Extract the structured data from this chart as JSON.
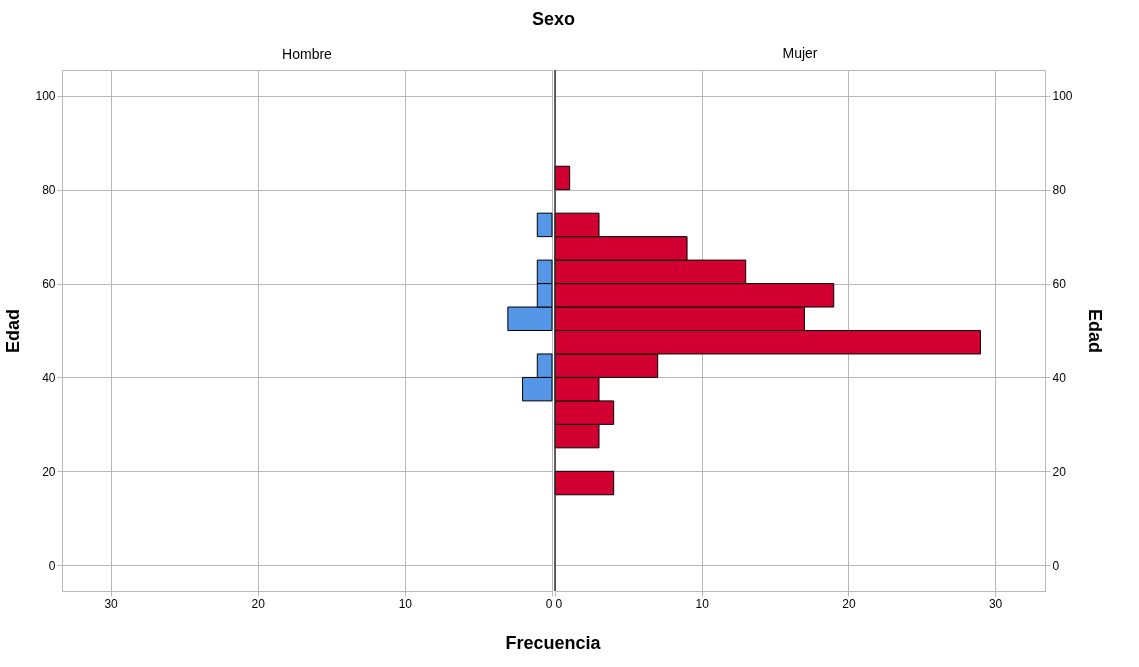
{
  "chart_data": [
    {
      "type": "histogram",
      "orientation": "horizontal",
      "title": "Hombre",
      "annotations": [
        "Sexo"
      ],
      "xlabel": "Frecuencia",
      "ylabel": "Edad",
      "bins": [
        15,
        20,
        25,
        30,
        35,
        40,
        45,
        50,
        55,
        60,
        65,
        70,
        75,
        80,
        85
      ],
      "series": [
        {
          "color": "#5596e6",
          "values": [
            0,
            0,
            0,
            0,
            2,
            1,
            0,
            3,
            1,
            1,
            0,
            1,
            0,
            0
          ]
        }
      ],
      "xlim": [
        33.3,
        0
      ],
      "xticks": [
        30,
        20,
        10,
        0
      ],
      "ylim": [
        -5.5,
        105.5
      ],
      "yticks": [
        0,
        20,
        40,
        60,
        80,
        100
      ],
      "grid": true
    },
    {
      "type": "histogram",
      "orientation": "horizontal",
      "title": "Mujer",
      "ylabel": "Edad",
      "bins": [
        15,
        20,
        25,
        30,
        35,
        40,
        45,
        50,
        55,
        60,
        65,
        70,
        75,
        80,
        85
      ],
      "series": [
        {
          "color": "#d10031",
          "values": [
            4,
            0,
            3,
            4,
            3,
            7,
            29,
            17,
            19,
            13,
            9,
            3,
            0,
            1
          ]
        }
      ],
      "xlim": [
        0,
        33.4
      ],
      "xticks": [
        0,
        10,
        20,
        30
      ],
      "ylim": [
        -5.5,
        105.5
      ],
      "yticks": [
        0,
        20,
        40,
        60,
        80,
        100
      ],
      "grid": true
    }
  ]
}
